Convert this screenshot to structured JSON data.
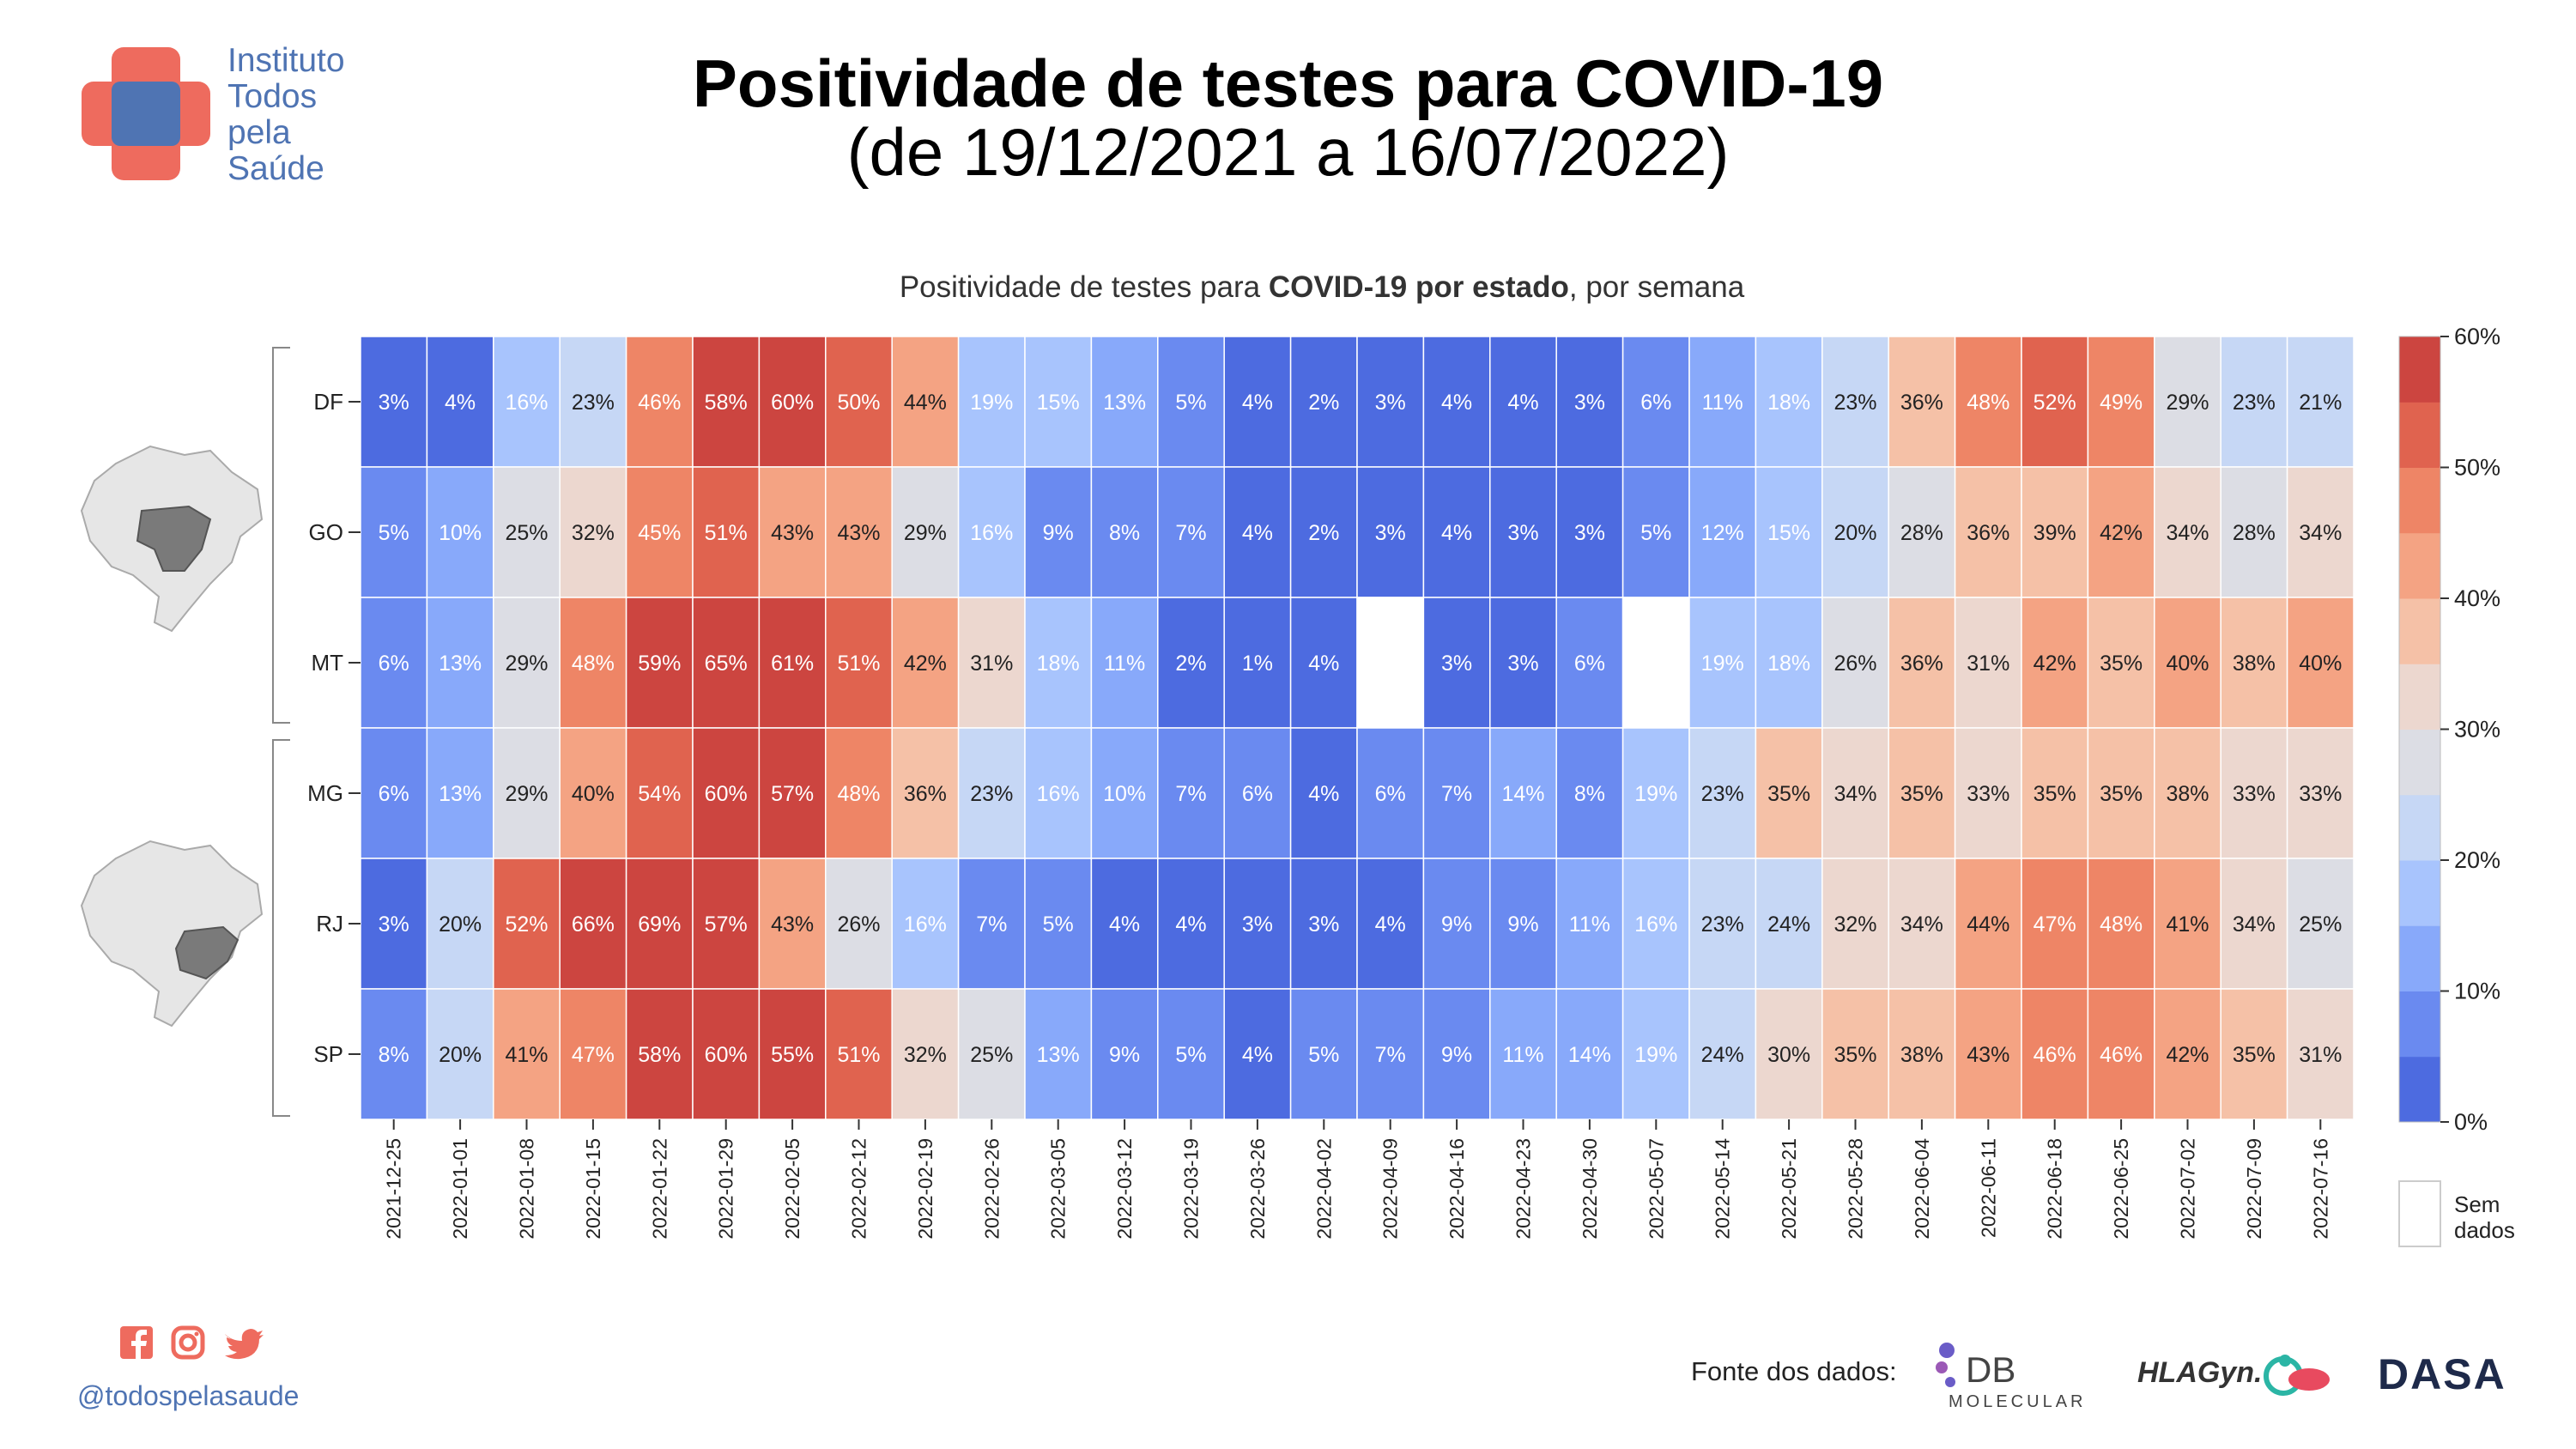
{
  "header": {
    "title": "Positividade de testes para COVID-19",
    "subtitle": "(de 19/12/2021 a 16/07/2022)",
    "org_lines": [
      "Instituto",
      "Todos",
      "pela",
      "Saúde"
    ]
  },
  "footer": {
    "handle": "@todospelasaude",
    "social_icons": [
      "facebook-icon",
      "instagram-icon",
      "twitter-icon"
    ],
    "source_label": "Fonte dos dados:",
    "db_logo_text": [
      "DB",
      "MOLECULAR"
    ],
    "hla_logo_text": "HLAGyn.",
    "dasa_logo_text": "DASA"
  },
  "colors": {
    "brand_red": "#ee6b5e",
    "brand_blue": "#4f74b3",
    "scale": [
      "#4d6be0",
      "#6a8af0",
      "#88a9fa",
      "#a8c4fd",
      "#c6d7f5",
      "#dcdde4",
      "#ecd7cf",
      "#f5c1a7",
      "#f4a383",
      "#ee8566",
      "#e0634f",
      "#cc4540"
    ]
  },
  "chart_data": {
    "type": "heatmap",
    "title_parts": [
      "Positividade de testes para ",
      "COVID-19 por estado",
      ", por semana"
    ],
    "x": [
      "2021-12-25",
      "2022-01-01",
      "2022-01-08",
      "2022-01-15",
      "2022-01-22",
      "2022-01-29",
      "2022-02-05",
      "2022-02-12",
      "2022-02-19",
      "2022-02-26",
      "2022-03-05",
      "2022-03-12",
      "2022-03-19",
      "2022-03-26",
      "2022-04-02",
      "2022-04-09",
      "2022-04-16",
      "2022-04-23",
      "2022-04-30",
      "2022-05-07",
      "2022-05-14",
      "2022-05-21",
      "2022-05-28",
      "2022-06-04",
      "2022-06-11",
      "2022-06-18",
      "2022-06-25",
      "2022-07-02",
      "2022-07-09",
      "2022-07-16"
    ],
    "y": [
      "DF",
      "GO",
      "MT",
      "MG",
      "RJ",
      "SP"
    ],
    "values": [
      [
        3,
        4,
        16,
        23,
        46,
        58,
        60,
        50,
        44,
        19,
        15,
        13,
        5,
        4,
        2,
        3,
        4,
        4,
        3,
        6,
        11,
        18,
        23,
        36,
        48,
        52,
        49,
        29,
        23,
        21
      ],
      [
        5,
        10,
        25,
        32,
        45,
        51,
        43,
        43,
        29,
        16,
        9,
        8,
        7,
        4,
        2,
        3,
        4,
        3,
        3,
        5,
        12,
        15,
        20,
        28,
        36,
        39,
        42,
        34,
        28,
        34
      ],
      [
        6,
        13,
        29,
        48,
        59,
        65,
        61,
        51,
        42,
        31,
        18,
        11,
        2,
        1,
        4,
        null,
        3,
        3,
        6,
        null,
        19,
        18,
        26,
        36,
        31,
        42,
        35,
        40,
        38,
        40
      ],
      [
        6,
        13,
        29,
        40,
        54,
        60,
        57,
        48,
        36,
        23,
        16,
        10,
        7,
        6,
        4,
        6,
        7,
        14,
        8,
        19,
        23,
        35,
        34,
        35,
        33,
        35,
        35,
        38,
        33,
        33
      ],
      [
        3,
        20,
        52,
        66,
        69,
        57,
        43,
        26,
        16,
        7,
        5,
        4,
        4,
        3,
        3,
        4,
        9,
        9,
        11,
        16,
        23,
        24,
        32,
        34,
        44,
        47,
        48,
        41,
        34,
        25
      ],
      [
        8,
        20,
        41,
        47,
        58,
        60,
        55,
        51,
        32,
        25,
        13,
        9,
        5,
        4,
        5,
        7,
        9,
        11,
        14,
        19,
        24,
        30,
        35,
        38,
        43,
        46,
        46,
        42,
        35,
        31
      ]
    ],
    "value_suffix": "%",
    "colorbar": {
      "range": [
        0,
        60
      ],
      "ticks": [
        "0%",
        "10%",
        "20%",
        "30%",
        "40%",
        "50%",
        "60%"
      ]
    },
    "missing_label": [
      "Sem",
      "dados"
    ],
    "groups": [
      [
        "DF",
        "GO",
        "MT"
      ],
      [
        "MG",
        "RJ",
        "SP"
      ]
    ]
  }
}
